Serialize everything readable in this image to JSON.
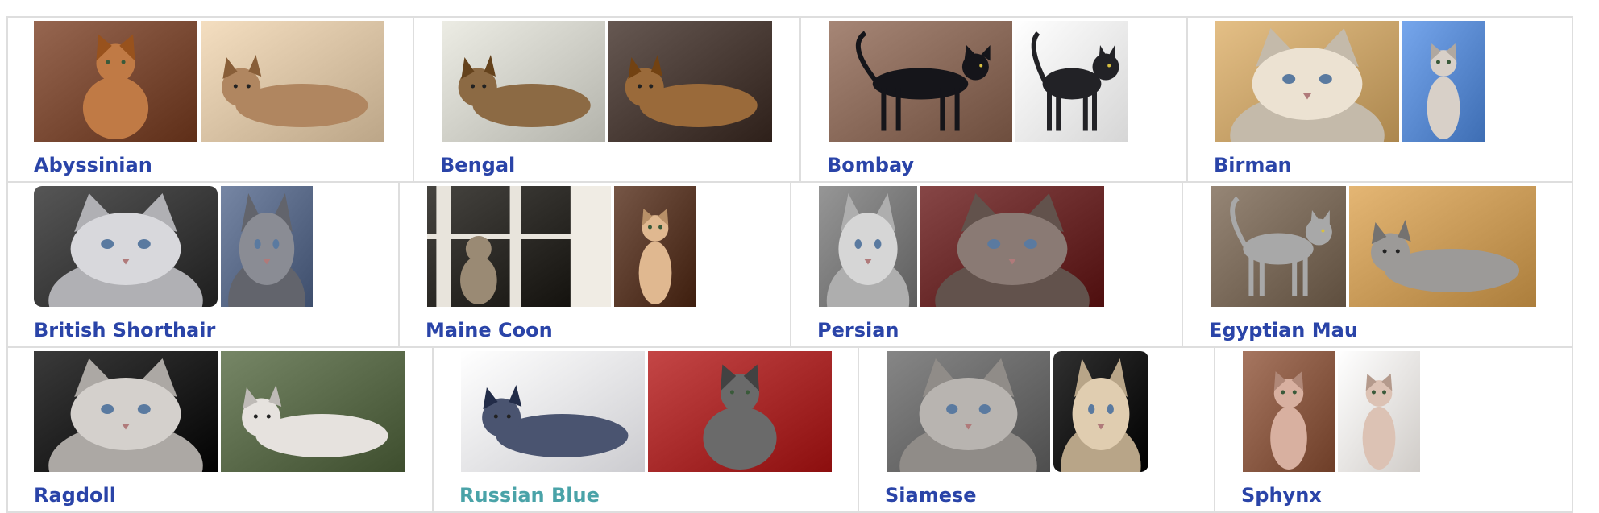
{
  "colors": {
    "link": "#2a44a8",
    "link_visited": "#4aa3a8",
    "cell_border": "#dedede"
  },
  "breeds": [
    {
      "name": "Abyssinian",
      "visited": false,
      "photos": [
        {
          "icon": "abyssinian-photo-1",
          "bg": "#7a4a34",
          "cat": "#c07a45",
          "pose": "sit"
        },
        {
          "icon": "abyssinian-photo-2",
          "bg": "#d8c2a4",
          "cat": "#b08660",
          "pose": "lie"
        }
      ]
    },
    {
      "name": "Bengal",
      "visited": false,
      "photos": [
        {
          "icon": "bengal-photo-1",
          "bg": "#d0d0c8",
          "cat": "#8c6a44",
          "pose": "lie"
        },
        {
          "icon": "bengal-photo-2",
          "bg": "#4a3c36",
          "cat": "#9a6a3a",
          "pose": "lie"
        }
      ]
    },
    {
      "name": "Bombay",
      "visited": false,
      "photos": [
        {
          "icon": "bombay-photo-1",
          "bg": "#8a6a5a",
          "cat": "#15151a",
          "pose": "stand"
        },
        {
          "icon": "bombay-photo-2",
          "bg": "#f2f2f2",
          "cat": "#222226",
          "pose": "stand"
        }
      ]
    },
    {
      "name": "Birman",
      "visited": false,
      "photos": [
        {
          "icon": "birman-photo-1",
          "bg": "#c8a36a",
          "cat": "#ece2d2",
          "pose": "face"
        },
        {
          "icon": "birman-photo-2",
          "bg": "#5a8ad0",
          "cat": "#d8d0c8",
          "pose": "sit"
        }
      ]
    },
    {
      "name": "British Shorthair",
      "visited": false,
      "photos": [
        {
          "icon": "british-shorthair-photo-1",
          "bg": "#3a3a3a",
          "cat": "#d8d8dc",
          "pose": "face",
          "rounded": true
        },
        {
          "icon": "british-shorthair-photo-2",
          "bg": "#5a6a88",
          "cat": "#8a8c94",
          "pose": "face"
        }
      ]
    },
    {
      "name": "Maine Coon",
      "visited": false,
      "photos": [
        {
          "icon": "maine-coon-photo-1",
          "bg": "#2a2824",
          "cat": "#9a8a74",
          "pose": "window"
        },
        {
          "icon": "maine-coon-photo-2",
          "bg": "#5a3a2a",
          "cat": "#e0b890",
          "pose": "sit"
        }
      ]
    },
    {
      "name": "Persian",
      "visited": false,
      "photos": [
        {
          "icon": "persian-photo-1",
          "bg": "#7a7a7a",
          "cat": "#d6d6d6",
          "pose": "face"
        },
        {
          "icon": "persian-photo-2",
          "bg": "#6a2a2a",
          "cat": "#8a7a74",
          "pose": "face"
        }
      ]
    },
    {
      "name": "Egyptian Mau",
      "visited": false,
      "photos": [
        {
          "icon": "egyptian-mau-photo-1",
          "bg": "#7a6a5a",
          "cat": "#a8a8a8",
          "pose": "stand"
        },
        {
          "icon": "egyptian-mau-photo-2",
          "bg": "#c89a58",
          "cat": "#9c9a98",
          "pose": "lie"
        }
      ]
    },
    {
      "name": "Ragdoll",
      "visited": false,
      "photos": [
        {
          "icon": "ragdoll-photo-1",
          "bg": "#1e1e1e",
          "cat": "#d4d0cc",
          "pose": "face"
        },
        {
          "icon": "ragdoll-photo-2",
          "bg": "#5a6a4a",
          "cat": "#e6e2de",
          "pose": "lie"
        }
      ]
    },
    {
      "name": "Russian Blue",
      "visited": true,
      "photos": [
        {
          "icon": "russian-blue-photo-1",
          "bg": "#e8e8ec",
          "cat": "#4a5470",
          "pose": "lie"
        },
        {
          "icon": "russian-blue-photo-2",
          "bg": "#a82a2a",
          "cat": "#6a6a6a",
          "pose": "sit"
        }
      ]
    },
    {
      "name": "Siamese",
      "visited": false,
      "photos": [
        {
          "icon": "siamese-photo-1",
          "bg": "#6a6a6a",
          "cat": "#b8b4b0",
          "pose": "face"
        },
        {
          "icon": "siamese-photo-2",
          "bg": "#141414",
          "cat": "#e0cdb0",
          "pose": "face",
          "rounded": true
        }
      ]
    },
    {
      "name": "Sphynx",
      "visited": false,
      "photos": [
        {
          "icon": "sphynx-photo-1",
          "bg": "#8a5a44",
          "cat": "#d8b0a0",
          "pose": "sit"
        },
        {
          "icon": "sphynx-photo-2",
          "bg": "#ece8e4",
          "cat": "#dcc2b4",
          "pose": "sit"
        }
      ]
    }
  ]
}
